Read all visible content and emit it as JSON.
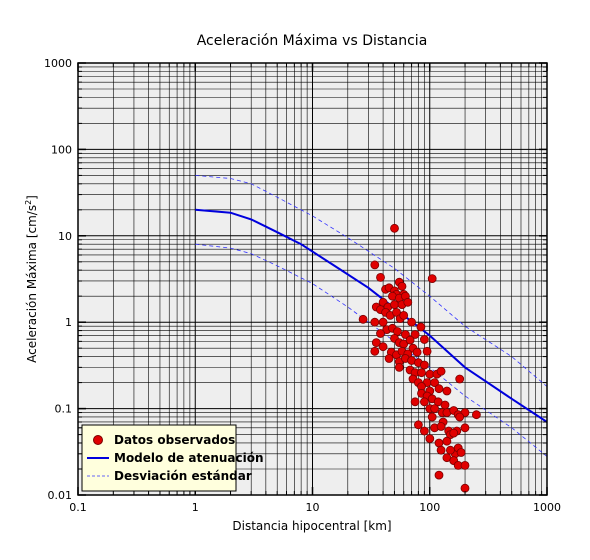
{
  "chart_data": {
    "type": "scatter",
    "title": "Aceleración Máxima vs Distancia",
    "xlabel": "Distancia hipocentral [km]",
    "ylabel_main": "Aceleración Máxima [cm/s",
    "ylabel_sup": "2",
    "ylabel_end": "]",
    "xscale": "log",
    "yscale": "log",
    "xlim": [
      0.1,
      1000
    ],
    "ylim": [
      0.01,
      1000
    ],
    "x_ticks": [
      {
        "value": 0.1,
        "label": "0.1"
      },
      {
        "value": 1,
        "label": "1"
      },
      {
        "value": 10,
        "label": "10"
      },
      {
        "value": 100,
        "label": "100"
      },
      {
        "value": 1000,
        "label": "1000"
      }
    ],
    "y_ticks": [
      {
        "value": 0.01,
        "label": "0.01"
      },
      {
        "value": 0.1,
        "label": "0.1"
      },
      {
        "value": 1,
        "label": "1"
      },
      {
        "value": 10,
        "label": "10"
      },
      {
        "value": 100,
        "label": "100"
      },
      {
        "value": 1000,
        "label": "1000"
      }
    ],
    "grid": true,
    "legend_position": "bottom-left",
    "legend": [
      {
        "label": "Datos observados",
        "style": "marker"
      },
      {
        "label": "Modelo de atenuación",
        "style": "solid"
      },
      {
        "label": "Desviación estándar",
        "style": "dashed"
      }
    ],
    "colors": {
      "points": "#e00000",
      "point_edge": "#7a0000",
      "model": "#0000dd",
      "std": "#3333ff",
      "plot_bg": "#eeeeee",
      "legend_bg": "#ffffdd",
      "grid": "#000000"
    },
    "series": [
      {
        "name": "Datos observados",
        "style": "scatter",
        "points": [
          [
            50,
            12.2
          ],
          [
            34,
            4.6
          ],
          [
            38,
            3.3
          ],
          [
            55,
            2.9
          ],
          [
            58,
            2.6
          ],
          [
            42,
            2.4
          ],
          [
            45,
            2.5
          ],
          [
            50,
            2.3
          ],
          [
            52,
            2.1
          ],
          [
            60,
            2.1
          ],
          [
            105,
            3.2
          ],
          [
            48,
            2.0
          ],
          [
            55,
            1.9
          ],
          [
            62,
            2.0
          ],
          [
            40,
            1.7
          ],
          [
            44,
            1.5
          ],
          [
            50,
            1.6
          ],
          [
            58,
            1.6
          ],
          [
            65,
            1.7
          ],
          [
            35,
            1.5
          ],
          [
            38,
            1.4
          ],
          [
            42,
            1.3
          ],
          [
            46,
            1.2
          ],
          [
            52,
            1.3
          ],
          [
            27,
            1.08
          ],
          [
            34,
            1.0
          ],
          [
            40,
            1.0
          ],
          [
            56,
            1.1
          ],
          [
            60,
            1.2
          ],
          [
            70,
            1.0
          ],
          [
            43,
            0.82
          ],
          [
            48,
            0.85
          ],
          [
            53,
            0.78
          ],
          [
            62,
            0.72
          ],
          [
            75,
            0.72
          ],
          [
            84,
            0.88
          ],
          [
            38,
            0.74
          ],
          [
            50,
            0.65
          ],
          [
            55,
            0.58
          ],
          [
            60,
            0.56
          ],
          [
            68,
            0.62
          ],
          [
            72,
            0.5
          ],
          [
            90,
            0.63
          ],
          [
            35,
            0.58
          ],
          [
            40,
            0.52
          ],
          [
            47,
            0.45
          ],
          [
            52,
            0.42
          ],
          [
            58,
            0.46
          ],
          [
            65,
            0.43
          ],
          [
            78,
            0.45
          ],
          [
            95,
            0.46
          ],
          [
            34,
            0.46
          ],
          [
            45,
            0.38
          ],
          [
            55,
            0.35
          ],
          [
            62,
            0.38
          ],
          [
            70,
            0.36
          ],
          [
            80,
            0.34
          ],
          [
            90,
            0.32
          ],
          [
            55,
            0.3
          ],
          [
            68,
            0.28
          ],
          [
            75,
            0.26
          ],
          [
            85,
            0.26
          ],
          [
            100,
            0.25
          ],
          [
            115,
            0.25
          ],
          [
            125,
            0.27
          ],
          [
            72,
            0.22
          ],
          [
            80,
            0.2
          ],
          [
            95,
            0.2
          ],
          [
            110,
            0.2
          ],
          [
            85,
            0.18
          ],
          [
            100,
            0.16
          ],
          [
            120,
            0.17
          ],
          [
            140,
            0.16
          ],
          [
            180,
            0.22
          ],
          [
            85,
            0.15
          ],
          [
            95,
            0.14
          ],
          [
            105,
            0.13
          ],
          [
            75,
            0.12
          ],
          [
            90,
            0.12
          ],
          [
            118,
            0.12
          ],
          [
            135,
            0.11
          ],
          [
            100,
            0.1
          ],
          [
            110,
            0.1
          ],
          [
            128,
            0.09
          ],
          [
            140,
            0.09
          ],
          [
            160,
            0.095
          ],
          [
            175,
            0.085
          ],
          [
            200,
            0.09
          ],
          [
            250,
            0.085
          ],
          [
            105,
            0.08
          ],
          [
            130,
            0.07
          ],
          [
            180,
            0.08
          ],
          [
            200,
            0.06
          ],
          [
            80,
            0.065
          ],
          [
            90,
            0.055
          ],
          [
            110,
            0.06
          ],
          [
            125,
            0.062
          ],
          [
            145,
            0.055
          ],
          [
            170,
            0.055
          ],
          [
            150,
            0.05
          ],
          [
            160,
            0.052
          ],
          [
            100,
            0.045
          ],
          [
            120,
            0.04
          ],
          [
            140,
            0.042
          ],
          [
            165,
            0.03
          ],
          [
            125,
            0.033
          ],
          [
            150,
            0.033
          ],
          [
            175,
            0.035
          ],
          [
            140,
            0.027
          ],
          [
            160,
            0.025
          ],
          [
            175,
            0.022
          ],
          [
            185,
            0.031
          ],
          [
            200,
            0.022
          ],
          [
            120,
            0.017
          ],
          [
            200,
            0.012
          ]
        ]
      },
      {
        "name": "Modelo de atenuación",
        "style": "solid",
        "points": [
          [
            1,
            20
          ],
          [
            2,
            18.5
          ],
          [
            3,
            15.5
          ],
          [
            5,
            11
          ],
          [
            8,
            8
          ],
          [
            15,
            4.6
          ],
          [
            30,
            2.5
          ],
          [
            60,
            1.2
          ],
          [
            100,
            0.7
          ],
          [
            200,
            0.3
          ],
          [
            500,
            0.13
          ],
          [
            1000,
            0.07
          ]
        ]
      },
      {
        "name": "Desviación estándar",
        "style": "dashed",
        "points": [
          [
            1,
            50
          ],
          [
            2,
            46
          ],
          [
            3,
            40
          ],
          [
            5,
            28
          ],
          [
            10,
            17
          ],
          [
            20,
            9.5
          ],
          [
            50,
            4.2
          ],
          [
            100,
            2.0
          ],
          [
            200,
            0.9
          ],
          [
            500,
            0.4
          ],
          [
            1000,
            0.18
          ]
        ]
      },
      {
        "name": "Desviación estándar",
        "style": "dashed",
        "points": [
          [
            1,
            8
          ],
          [
            2,
            7.2
          ],
          [
            3,
            6.2
          ],
          [
            5,
            4.5
          ],
          [
            10,
            2.8
          ],
          [
            20,
            1.5
          ],
          [
            50,
            0.6
          ],
          [
            100,
            0.3
          ],
          [
            200,
            0.14
          ],
          [
            500,
            0.06
          ],
          [
            1000,
            0.028
          ]
        ]
      }
    ]
  }
}
